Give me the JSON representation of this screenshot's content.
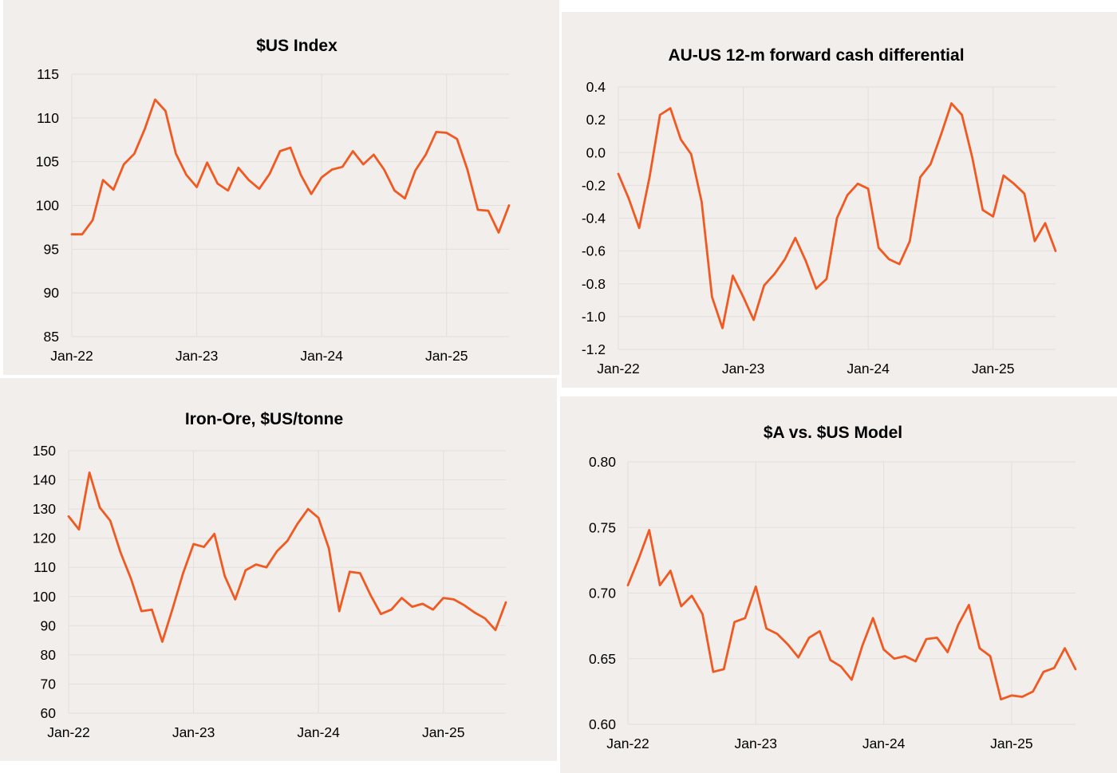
{
  "series_color": "#f05a22",
  "panel_background": "#f1eeeb",
  "chart_data": [
    {
      "type": "line",
      "title": "$US Index",
      "xlabel": "",
      "ylabel": "",
      "x_tick_labels": [
        "Jan-22",
        "Jan-23",
        "Jan-24",
        "Jan-25"
      ],
      "y_tick_labels": [
        "115",
        "110",
        "105",
        "100",
        "95",
        "90",
        "85"
      ],
      "ylim": [
        85,
        115
      ],
      "grid": true,
      "x_start": "Jan-22",
      "frequency": "monthly",
      "series": [
        {
          "values": [
            96.7,
            96.7,
            98.3,
            102.9,
            101.8,
            104.7,
            105.9,
            108.7,
            112.1,
            110.8,
            105.9,
            103.5,
            102.1,
            104.9,
            102.5,
            101.7,
            104.3,
            102.9,
            101.9,
            103.6,
            106.2,
            106.6,
            103.5,
            101.3,
            103.2,
            104.1,
            104.4,
            106.2,
            104.7,
            105.8,
            104.1,
            101.7,
            100.8,
            104.0,
            105.8,
            108.4,
            108.3,
            107.6,
            104.1,
            99.5,
            99.4,
            96.9,
            100.0
          ]
        }
      ]
    },
    {
      "type": "line",
      "title": "AU-US 12-m forward cash differential",
      "xlabel": "",
      "ylabel": "",
      "x_tick_labels": [
        "Jan-22",
        "Jan-23",
        "Jan-24",
        "Jan-25"
      ],
      "y_tick_labels": [
        "0.4",
        "0.2",
        "0.0",
        "-0.2",
        "-0.4",
        "-0.6",
        "-0.8",
        "-1.0",
        "-1.2"
      ],
      "ylim": [
        -1.2,
        0.4
      ],
      "grid": true,
      "x_start": "Jan-22",
      "frequency": "monthly",
      "series": [
        {
          "values": [
            -0.13,
            -0.28,
            -0.46,
            -0.15,
            0.23,
            0.27,
            0.08,
            -0.01,
            -0.3,
            -0.88,
            -1.07,
            -0.75,
            -0.88,
            -1.02,
            -0.81,
            -0.74,
            -0.65,
            -0.52,
            -0.66,
            -0.83,
            -0.77,
            -0.4,
            -0.26,
            -0.19,
            -0.22,
            -0.58,
            -0.65,
            -0.68,
            -0.54,
            -0.15,
            -0.07,
            0.11,
            0.3,
            0.23,
            -0.03,
            -0.35,
            -0.39,
            -0.14,
            -0.19,
            -0.25,
            -0.54,
            -0.43,
            -0.6
          ]
        }
      ]
    },
    {
      "type": "line",
      "title": "Iron-Ore, $US/tonne",
      "xlabel": "",
      "ylabel": "",
      "x_tick_labels": [
        "Jan-22",
        "Jan-23",
        "Jan-24",
        "Jan-25"
      ],
      "y_tick_labels": [
        "150",
        "140",
        "130",
        "120",
        "110",
        "100",
        "90",
        "80",
        "70",
        "60"
      ],
      "ylim": [
        60,
        150
      ],
      "grid": true,
      "x_start": "Jan-22",
      "frequency": "monthly",
      "series": [
        {
          "values": [
            127.5,
            123.0,
            142.5,
            130.5,
            126.0,
            115.0,
            106.0,
            95.0,
            95.5,
            84.5,
            96.0,
            108.0,
            118.0,
            117.0,
            121.5,
            107.0,
            99.0,
            109.0,
            111.0,
            110.0,
            115.5,
            119.0,
            125.0,
            130.0,
            127.0,
            116.5,
            95.0,
            108.5,
            108.0,
            100.5,
            94.0,
            95.5,
            99.5,
            96.5,
            97.5,
            95.5,
            99.5,
            99.0,
            97.0,
            94.5,
            92.5,
            88.5,
            98.0
          ]
        }
      ]
    },
    {
      "type": "line",
      "title": "$A vs. $US Model",
      "xlabel": "",
      "ylabel": "",
      "x_tick_labels": [
        "Jan-22",
        "Jan-23",
        "Jan-24",
        "Jan-25"
      ],
      "y_tick_labels": [
        "0.80",
        "0.75",
        "0.70",
        "0.65",
        "0.60"
      ],
      "ylim": [
        0.6,
        0.8
      ],
      "grid": true,
      "x_start": "Jan-22",
      "frequency": "monthly",
      "series": [
        {
          "values": [
            0.706,
            0.726,
            0.748,
            0.706,
            0.717,
            0.69,
            0.698,
            0.684,
            0.64,
            0.642,
            0.678,
            0.681,
            0.705,
            0.673,
            0.669,
            0.661,
            0.651,
            0.666,
            0.671,
            0.649,
            0.644,
            0.634,
            0.66,
            0.681,
            0.657,
            0.65,
            0.652,
            0.648,
            0.665,
            0.666,
            0.655,
            0.676,
            0.691,
            0.658,
            0.652,
            0.619,
            0.622,
            0.621,
            0.625,
            0.64,
            0.643,
            0.658,
            0.642
          ]
        }
      ]
    }
  ]
}
